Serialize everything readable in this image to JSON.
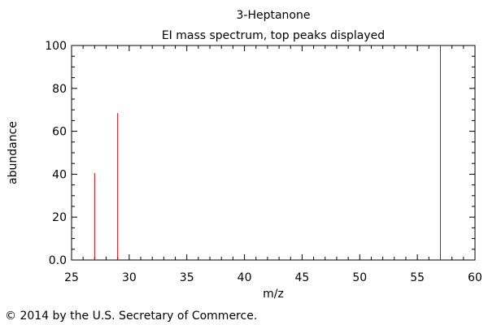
{
  "chart_data": {
    "type": "bar",
    "title": "3-Heptanone",
    "subtitle": "EI mass spectrum, top peaks displayed",
    "xlabel": "m/z",
    "ylabel": "abundance",
    "xlim": [
      25,
      60
    ],
    "ylim": [
      0,
      100
    ],
    "xticks": [
      25,
      30,
      35,
      40,
      45,
      50,
      55,
      60
    ],
    "xtick_labels": [
      "25",
      "30",
      "35",
      "40",
      "45",
      "50",
      "55",
      "60"
    ],
    "yticks": [
      0,
      20,
      40,
      60,
      80,
      100
    ],
    "ytick_labels": [
      "0.0",
      "20",
      "40",
      "60",
      "80",
      "100"
    ],
    "grid": false,
    "peak_color": "#e00000",
    "peaks": [
      {
        "mz": 27,
        "abundance": 40.5
      },
      {
        "mz": 29,
        "abundance": 68.5
      },
      {
        "mz": 57,
        "abundance": 100
      }
    ]
  },
  "copyright": "© 2014 by the U.S. Secretary of Commerce."
}
